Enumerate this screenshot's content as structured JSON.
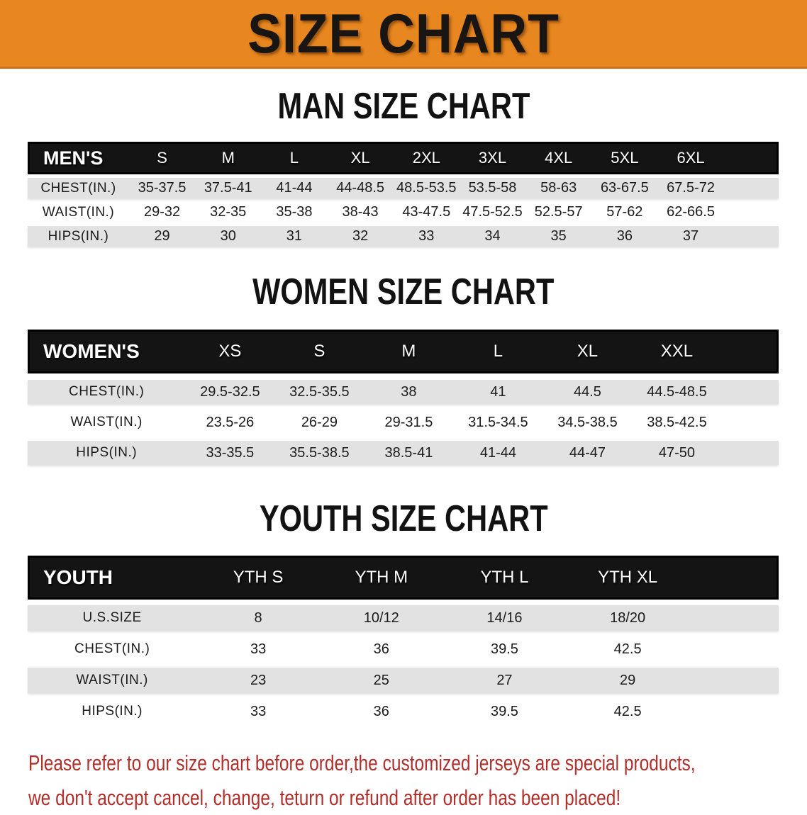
{
  "banner": {
    "title": "SIZE CHART",
    "background_color": "#E8861F",
    "text_color": "#181513"
  },
  "sections": [
    {
      "id": "men",
      "heading": "MAN SIZE CHART",
      "table": {
        "header_label": "MEN'S",
        "columns": [
          "S",
          "M",
          "L",
          "XL",
          "2XL",
          "3XL",
          "4XL",
          "5XL",
          "6XL"
        ],
        "rows": [
          {
            "label": "CHEST(IN.)",
            "values": [
              "35-37.5",
              "37.5-41",
              "41-44",
              "44-48.5",
              "48.5-53.5",
              "53.5-58",
              "58-63",
              "63-67.5",
              "67.5-72"
            ]
          },
          {
            "label": "WAIST(IN.)",
            "values": [
              "29-32",
              "32-35",
              "35-38",
              "38-43",
              "43-47.5",
              "47.5-52.5",
              "52.5-57",
              "57-62",
              "62-66.5"
            ]
          },
          {
            "label": "HIPS(IN.)",
            "values": [
              "29",
              "30",
              "31",
              "32",
              "33",
              "34",
              "35",
              "36",
              "37"
            ]
          }
        ]
      }
    },
    {
      "id": "women",
      "heading": "WOMEN SIZE CHART",
      "table": {
        "header_label": "WOMEN'S",
        "columns": [
          "XS",
          "S",
          "M",
          "L",
          "XL",
          "XXL"
        ],
        "rows": [
          {
            "label": "CHEST(IN.)",
            "values": [
              "29.5-32.5",
              "32.5-35.5",
              "38",
              "41",
              "44.5",
              "44.5-48.5"
            ]
          },
          {
            "label": "WAIST(IN.)",
            "values": [
              "23.5-26",
              "26-29",
              "29-31.5",
              "31.5-34.5",
              "34.5-38.5",
              "38.5-42.5"
            ]
          },
          {
            "label": "HIPS(IN.)",
            "values": [
              "33-35.5",
              "35.5-38.5",
              "38.5-41",
              "41-44",
              "44-47",
              "47-50"
            ]
          }
        ]
      }
    },
    {
      "id": "youth",
      "heading": "YOUTH SIZE CHART",
      "table": {
        "header_label": "YOUTH",
        "columns": [
          "YTH S",
          "YTH M",
          "YTH L",
          "YTH XL"
        ],
        "rows": [
          {
            "label": "U.S.SIZE",
            "values": [
              "8",
              "10/12",
              "14/16",
              "18/20"
            ]
          },
          {
            "label": "CHEST(IN.)",
            "values": [
              "33",
              "36",
              "39.5",
              "42.5"
            ]
          },
          {
            "label": "WAIST(IN.)",
            "values": [
              "23",
              "25",
              "27",
              "29"
            ]
          },
          {
            "label": "HIPS(IN.)",
            "values": [
              "33",
              "36",
              "39.5",
              "42.5"
            ]
          }
        ]
      }
    }
  ],
  "footer": {
    "line1": "Please refer to our size chart before order,the customized jerseys are special products,",
    "line2": "we don't accept cancel, change, teturn or refund after order has been placed!",
    "text_color": "#B22E2A"
  },
  "colors": {
    "banner_orange": "#E8861F",
    "header_black": "#151414",
    "row_gray": "#E2E2E2",
    "row_white": "#FFFFFF",
    "disclaimer_red": "#B22E2A"
  }
}
